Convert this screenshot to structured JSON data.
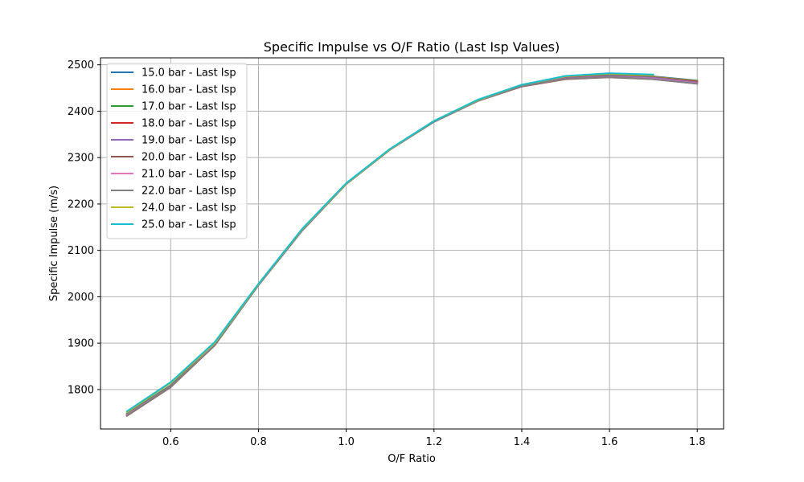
{
  "chart_data": {
    "type": "line",
    "title": "Specific Impulse vs O/F Ratio (Last Isp Values)",
    "xlabel": "O/F Ratio",
    "ylabel": "Specific Impulse (m/s)",
    "xlim": [
      0.44,
      1.86
    ],
    "ylim": [
      1715,
      2515
    ],
    "xticks": [
      0.6,
      0.8,
      1.0,
      1.2,
      1.4,
      1.6,
      1.8
    ],
    "xtick_labels": [
      "0.6",
      "0.8",
      "1.0",
      "1.2",
      "1.4",
      "1.6",
      "1.8"
    ],
    "yticks": [
      1800,
      1900,
      2000,
      2100,
      2200,
      2300,
      2400,
      2500
    ],
    "ytick_labels": [
      "1800",
      "1900",
      "2000",
      "2100",
      "2200",
      "2300",
      "2400",
      "2500"
    ],
    "grid": true,
    "legend_position": "top-left",
    "series": [
      {
        "name": "15.0 bar - Last Isp",
        "color": "#1f77b4",
        "x": [
          0.5,
          0.6,
          0.7,
          0.8,
          0.9,
          1.0,
          1.1,
          1.2,
          1.3,
          1.4,
          1.5,
          1.6,
          1.7,
          1.8
        ],
        "values": [
          1748,
          1809,
          1898,
          2027,
          2145,
          2243,
          2318,
          2378,
          2424,
          2456,
          2474,
          2479,
          2475,
          2466
        ]
      },
      {
        "name": "16.0 bar - Last Isp",
        "color": "#ff7f0e",
        "x": [
          0.5,
          0.6,
          0.7,
          0.8,
          0.9,
          1.0,
          1.1,
          1.2,
          1.3,
          1.4,
          1.5,
          1.6,
          1.7,
          1.8
        ],
        "values": [
          1747,
          1808,
          1897,
          2026,
          2144,
          2243,
          2318,
          2378,
          2423,
          2455,
          2473,
          2478,
          2474,
          2465
        ]
      },
      {
        "name": "17.0 bar - Last Isp",
        "color": "#2ca02c",
        "x": [
          0.5,
          0.6,
          0.7,
          0.8,
          0.9,
          1.0,
          1.1,
          1.2,
          1.3,
          1.4,
          1.5,
          1.6,
          1.7,
          1.8
        ],
        "values": [
          1747,
          1808,
          1897,
          2026,
          2144,
          2243,
          2318,
          2378,
          2423,
          2455,
          2472,
          2477,
          2473,
          2464
        ]
      },
      {
        "name": "18.0 bar - Last Isp",
        "color": "#d62728",
        "x": [
          0.5,
          0.6,
          0.7,
          0.8,
          0.9,
          1.0,
          1.1,
          1.2,
          1.3,
          1.4,
          1.5,
          1.6,
          1.7,
          1.8
        ],
        "values": [
          1746,
          1807,
          1896,
          2026,
          2144,
          2243,
          2318,
          2378,
          2423,
          2455,
          2472,
          2476,
          2472,
          2463
        ]
      },
      {
        "name": "19.0 bar - Last Isp",
        "color": "#9467bd",
        "x": [
          0.5,
          0.6,
          0.7,
          0.8,
          0.9,
          1.0,
          1.1,
          1.2,
          1.3,
          1.4,
          1.5,
          1.6,
          1.7,
          1.8
        ],
        "values": [
          1746,
          1807,
          1896,
          2026,
          2144,
          2243,
          2318,
          2378,
          2423,
          2455,
          2471,
          2476,
          2472,
          2462
        ]
      },
      {
        "name": "20.0 bar - Last Isp",
        "color": "#8c564b",
        "x": [
          0.5,
          0.6,
          0.7,
          0.8,
          0.9,
          1.0,
          1.1,
          1.2,
          1.3,
          1.4,
          1.5,
          1.6,
          1.7,
          1.8
        ],
        "values": [
          1743,
          1805,
          1895,
          2025,
          2143,
          2243,
          2317,
          2377,
          2422,
          2453,
          2469,
          2473,
          2469,
          2459
        ]
      },
      {
        "name": "21.0 bar - Last Isp",
        "color": "#e377c2",
        "x": [
          0.5,
          0.6,
          0.7,
          0.8,
          0.9,
          1.0,
          1.1,
          1.2,
          1.3,
          1.4,
          1.5,
          1.6,
          1.7,
          1.8
        ],
        "values": [
          1745,
          1806,
          1896,
          2025,
          2143,
          2243,
          2317,
          2377,
          2422,
          2454,
          2470,
          2474,
          2470,
          2460
        ]
      },
      {
        "name": "22.0 bar - Last Isp",
        "color": "#7f7f7f",
        "x": [
          0.5,
          0.6,
          0.7,
          0.8,
          0.9,
          1.0,
          1.1,
          1.2,
          1.3,
          1.4,
          1.5,
          1.6,
          1.7,
          1.8
        ],
        "values": [
          1744,
          1806,
          1895,
          2025,
          2143,
          2243,
          2317,
          2377,
          2422,
          2454,
          2470,
          2474,
          2469,
          2459
        ]
      },
      {
        "name": "24.0 bar - Last Isp",
        "color": "#bcbd22",
        "x": [
          0.5,
          0.6,
          0.7,
          0.8,
          0.9,
          1.0,
          1.1,
          1.2,
          1.3,
          1.4,
          1.5,
          1.6,
          1.7
        ],
        "values": [
          1751,
          1814,
          1900,
          2027,
          2146,
          2244,
          2318,
          2379,
          2424,
          2457,
          2475,
          2481,
          2478
        ]
      },
      {
        "name": "25.0 bar - Last Isp",
        "color": "#17becf",
        "x": [
          0.5,
          0.6,
          0.7,
          0.8,
          0.9,
          1.0,
          1.1,
          1.2,
          1.3,
          1.4,
          1.5,
          1.6,
          1.7
        ],
        "values": [
          1753,
          1816,
          1902,
          2028,
          2147,
          2245,
          2319,
          2379,
          2425,
          2457,
          2476,
          2482,
          2479
        ]
      }
    ]
  }
}
